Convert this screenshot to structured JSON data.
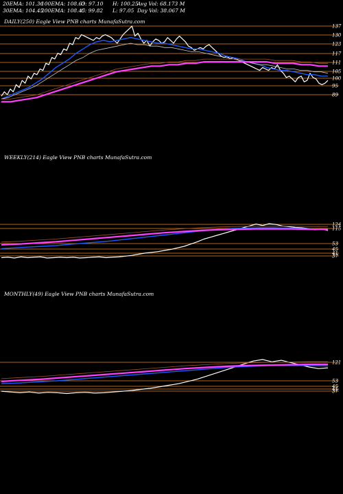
{
  "header": {
    "ema20": "20EMA: 101.36",
    "ema100": "100EMA: 108.63",
    "open": "O: 97.10",
    "high": "H: 100.25",
    "avg_vol": "Avg Vol: 68.173 M",
    "ema30": "30EMA: 104.45",
    "ema200": "200EMA: 108.45",
    "close": "C: 99.82",
    "low": "L: 97.05",
    "day_vol": "Day Vol: 38.067 M"
  },
  "panels": {
    "daily": {
      "label": "DAILY(250) Eagle   View  PNB charts MunafaSutra.com"
    },
    "weekly": {
      "label": "WEEKLY(214) Eagle   View  PNB charts MunafaSutra.com"
    },
    "monthly": {
      "label": "MONTHLY(49) Eagle   View  PNB charts MunafaSutra.com"
    }
  },
  "colors": {
    "background": "#000000",
    "price": "#ffffff",
    "ema_short": "#1e5aff",
    "ema_mid": "#c8c8c8",
    "ema_long": "#ff40ff",
    "ema_200": "#a0522d",
    "levels": "#b5651d"
  },
  "chart_data": [
    {
      "type": "line",
      "name": "daily",
      "ylim": [
        86,
        140
      ],
      "levels": [
        137,
        130,
        123,
        117,
        111,
        105,
        100,
        95,
        89
      ],
      "tick_labels": [
        "137",
        "130",
        "123",
        "117",
        "111",
        "105",
        "100",
        "95",
        "89"
      ],
      "series": [
        {
          "role": "price",
          "values": [
            88,
            91,
            89,
            93,
            91,
            96,
            94,
            99,
            97,
            102,
            100,
            104,
            103,
            107,
            106,
            111,
            110,
            115,
            114,
            118,
            117,
            121,
            120,
            125,
            124,
            129,
            128,
            131,
            130,
            129,
            128,
            127,
            129,
            128,
            130,
            131,
            130,
            129,
            127,
            125,
            128,
            131,
            133,
            135,
            137,
            130,
            132,
            128,
            125,
            127,
            123,
            126,
            128,
            127,
            125,
            126,
            129,
            127,
            125,
            128,
            130,
            128,
            126,
            123,
            122,
            120,
            121,
            122,
            121,
            123,
            124,
            122,
            120,
            118,
            116,
            115,
            116,
            114,
            115,
            114,
            113,
            112,
            111,
            110,
            109,
            108,
            107,
            106,
            108,
            107,
            106,
            108,
            107,
            110,
            106,
            104,
            101,
            102,
            100,
            98,
            101,
            102,
            98,
            99,
            104,
            101,
            100,
            97,
            96,
            97,
            99
          ]
        },
        {
          "role": "ema_short",
          "values": [
            86,
            88,
            90,
            92,
            94,
            97,
            100,
            104,
            108,
            111,
            114,
            118,
            121,
            124,
            126,
            127,
            126,
            127,
            128,
            129,
            128,
            127,
            126,
            125,
            125,
            124,
            123,
            122,
            121,
            121,
            120,
            119,
            118,
            116,
            115,
            114,
            112,
            111,
            110,
            108,
            107,
            106,
            106,
            105,
            104,
            103,
            103,
            102,
            102
          ]
        },
        {
          "role": "ema_mid",
          "values": [
            86,
            87,
            89,
            91,
            93,
            95,
            98,
            101,
            104,
            107,
            110,
            113,
            115,
            118,
            120,
            121,
            122,
            123,
            124,
            125,
            124,
            124,
            123,
            123,
            122,
            122,
            121,
            120,
            119,
            119,
            118,
            117,
            116,
            115,
            114,
            113,
            112,
            111,
            110,
            110,
            109,
            108,
            107,
            107,
            106,
            106,
            105,
            105,
            104
          ]
        },
        {
          "role": "ema_long",
          "values": [
            84,
            84,
            85,
            86,
            87,
            89,
            91,
            93,
            95,
            97,
            99,
            101,
            103,
            105,
            106,
            107,
            108,
            109,
            109,
            110,
            110,
            111,
            111,
            112,
            112,
            112,
            112,
            112,
            112,
            112,
            112,
            111,
            111,
            111,
            110,
            110,
            109,
            109
          ]
        }
      ]
    },
    {
      "type": "line",
      "name": "weekly",
      "levels": [
        124,
        115,
        53,
        45,
        41,
        37
      ],
      "tick_labels": [
        "124",
        "115",
        "53",
        "45",
        "41",
        "37"
      ],
      "series": [
        {
          "role": "price",
          "values": [
            36,
            37,
            35,
            38,
            36,
            37,
            38,
            35,
            36,
            37,
            36,
            37,
            35,
            36,
            37,
            38,
            36,
            37,
            38,
            40,
            42,
            45,
            48,
            50,
            52,
            55,
            58,
            62,
            66,
            72,
            78,
            85,
            90,
            95,
            100,
            105,
            110,
            115,
            120,
            125,
            121,
            126,
            124,
            120,
            118,
            116,
            115,
            113,
            110,
            112,
            108
          ]
        },
        {
          "role": "ema_short",
          "values": [
            60,
            62,
            64,
            66,
            68,
            71,
            74,
            77,
            80,
            84,
            88,
            92,
            96,
            100,
            104,
            108,
            111,
            113,
            114,
            115,
            115,
            114,
            113,
            112,
            110
          ]
        },
        {
          "role": "ema_long",
          "values": [
            70,
            72,
            75,
            78,
            82,
            86,
            90,
            94,
            98,
            102,
            105,
            108,
            110,
            111,
            112,
            112,
            112,
            111,
            111
          ]
        }
      ]
    },
    {
      "type": "line",
      "name": "monthly",
      "levels": [
        121,
        53,
        45,
        41,
        37
      ],
      "tick_labels": [
        "121",
        "53",
        "45",
        "41",
        "37"
      ],
      "series": [
        {
          "role": "price",
          "values": [
            40,
            38,
            36,
            38,
            35,
            37,
            36,
            34,
            36,
            37,
            35,
            36,
            38,
            40,
            42,
            45,
            48,
            52,
            56,
            60,
            66,
            72,
            80,
            88,
            96,
            104,
            112,
            120,
            124,
            118,
            122,
            116,
            110,
            104,
            100,
            102
          ]
        },
        {
          "role": "ema_short",
          "values": [
            60,
            62,
            65,
            68,
            72,
            76,
            80,
            84,
            88,
            92,
            96,
            100,
            104,
            106,
            108,
            108,
            108,
            107
          ]
        },
        {
          "role": "ema_long",
          "values": [
            66,
            69,
            72,
            76,
            80,
            84,
            88,
            92,
            96,
            100,
            103,
            106,
            108,
            109,
            110,
            111,
            111
          ]
        }
      ]
    }
  ]
}
